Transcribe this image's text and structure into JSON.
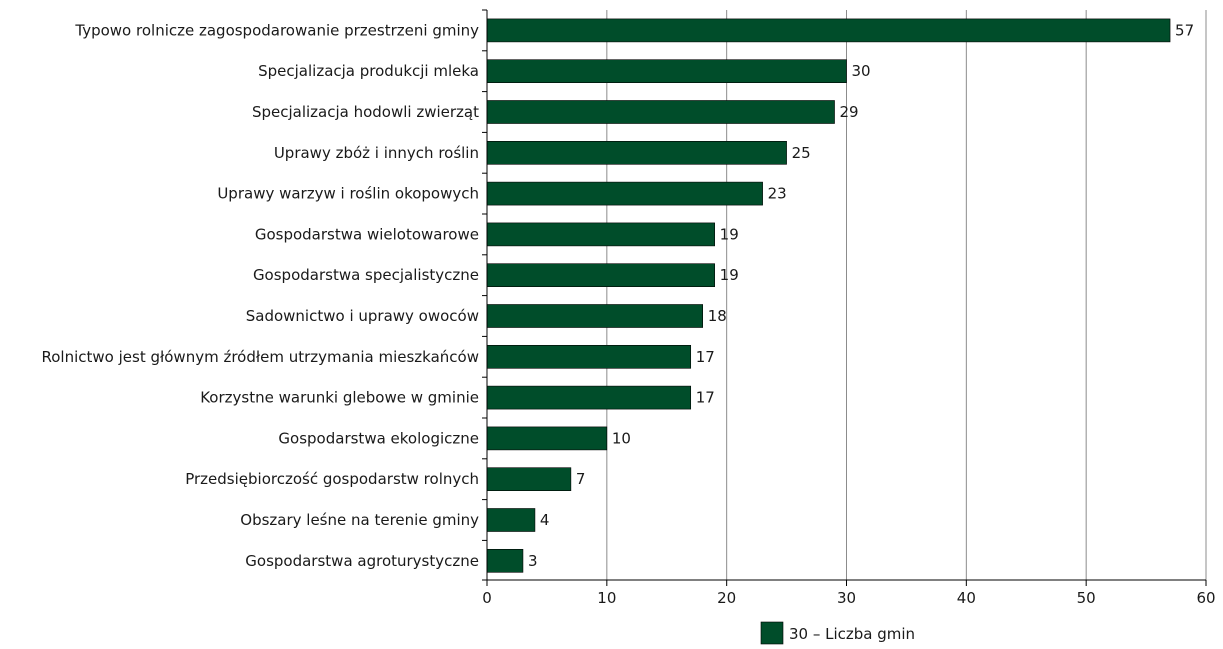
{
  "chart_data": {
    "type": "bar",
    "orientation": "horizontal",
    "categories": [
      "Typowo rolnicze zagospodarowanie przestrzeni gminy",
      "Specjalizacja produkcji mleka",
      "Specjalizacja hodowli zwierząt",
      "Uprawy zbóż i innych roślin",
      "Uprawy warzyw i roślin okopowych",
      "Gospodarstwa wielotowarowe",
      "Gospodarstwa specjalistyczne",
      "Sadownictwo i uprawy owoców",
      "Rolnictwo jest głównym źródłem utrzymania mieszkańców",
      "Korzystne warunki glebowe w gminie",
      "Gospodarstwa ekologiczne",
      "Przedsiębiorczość gospodarstw rolnych",
      "Obszary leśne na terenie gminy",
      "Gospodarstwa agroturystyczne"
    ],
    "series": [
      {
        "name": "30 – Liczba gmin",
        "values": [
          57,
          30,
          29,
          25,
          23,
          19,
          19,
          18,
          17,
          17,
          10,
          7,
          4,
          3
        ]
      }
    ],
    "xlim": [
      0,
      60
    ],
    "xticks": [
      0,
      10,
      20,
      30,
      40,
      50,
      60
    ],
    "xlabel": "",
    "ylabel": "",
    "grid": true,
    "data_labels": true,
    "legend_position": "bottom",
    "bar_color": "#004d2a"
  }
}
